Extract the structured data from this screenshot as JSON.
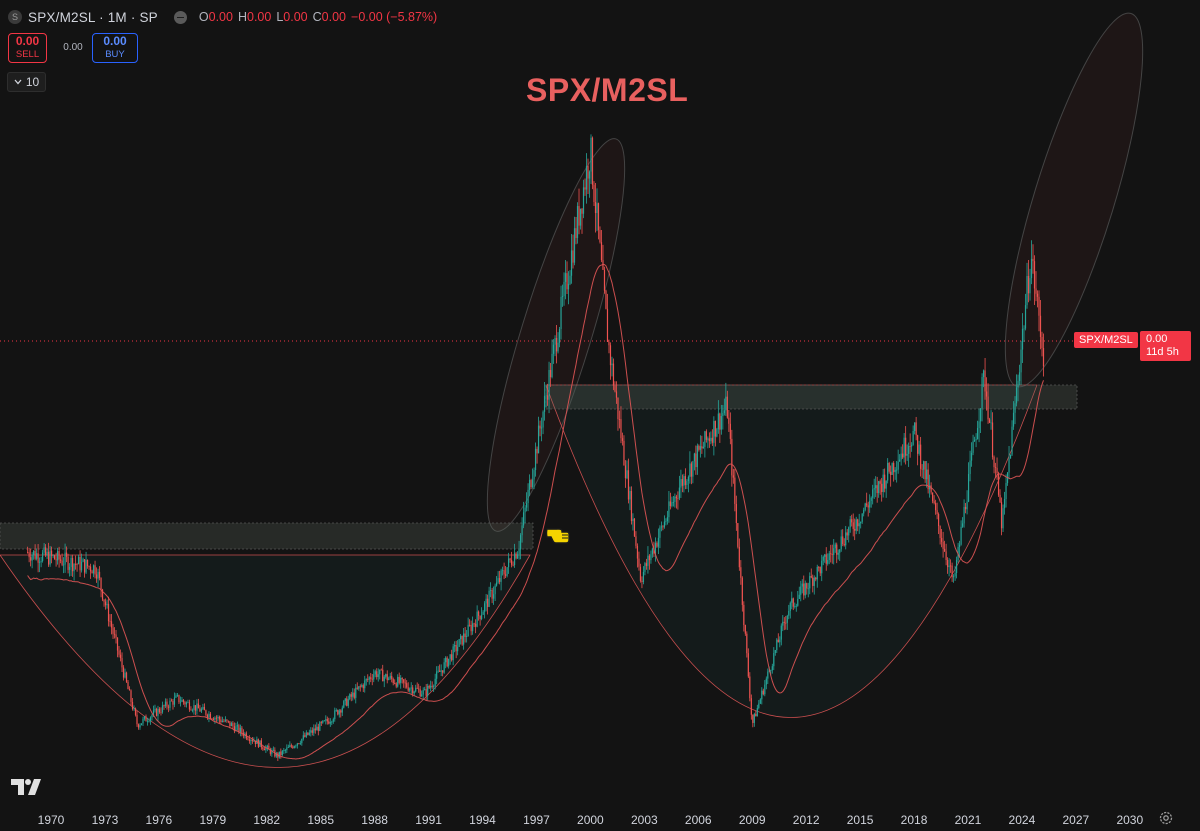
{
  "header": {
    "symbol_logo": "S",
    "symbol_title": "SPX/M2SL · 1M · SP",
    "ohlc": [
      {
        "key": "O",
        "value": "0.00"
      },
      {
        "key": "H",
        "value": "0.00"
      },
      {
        "key": "L",
        "value": "0.00"
      },
      {
        "key": "C",
        "value": "0.00"
      }
    ],
    "change": "−0.00 (−5.87%)"
  },
  "trade": {
    "sell_price": "0.00",
    "sell_label": "SELL",
    "spread": "0.00",
    "buy_price": "0.00",
    "buy_label": "BUY"
  },
  "collapse": {
    "count": "10"
  },
  "chart_title": "SPX/M2SL",
  "price_scale": {
    "symbol_label": "SPX/M2SL",
    "last_price": "0.00",
    "countdown": "11d 5h"
  },
  "time_axis": {
    "ticks": [
      "1970",
      "1973",
      "1976",
      "1979",
      "1982",
      "1985",
      "1988",
      "1991",
      "1994",
      "1997",
      "2000",
      "2003",
      "2006",
      "2009",
      "2012",
      "2015",
      "2018",
      "2021",
      "2024",
      "2027",
      "2030"
    ]
  },
  "colors": {
    "background": "#131313",
    "up_candle": "#26a69a",
    "down_candle": "#ef5350",
    "moving_average": "#e05555",
    "title": "#e8605f",
    "price_tag": "#f23645"
  },
  "icons": [
    "symbol-logo-icon",
    "hide-icon",
    "chevron-down-icon",
    "tradingview-logo-icon",
    "pointing-hand-icon",
    "settings-icon"
  ],
  "chart_data": {
    "type": "candlestick",
    "series_name": "SPX/M2SL",
    "interval": "1M",
    "x_unit": "year",
    "moving_average": true,
    "key_points": [
      {
        "x": 1968.7,
        "y": 0.63
      },
      {
        "x": 1972.5,
        "y": 0.6
      },
      {
        "x": 1974.8,
        "y": 0.3
      },
      {
        "x": 1977.0,
        "y": 0.35
      },
      {
        "x": 1980.0,
        "y": 0.3
      },
      {
        "x": 1982.6,
        "y": 0.24
      },
      {
        "x": 1985.5,
        "y": 0.31
      },
      {
        "x": 1988.0,
        "y": 0.4
      },
      {
        "x": 1990.8,
        "y": 0.36
      },
      {
        "x": 1994.0,
        "y": 0.52
      },
      {
        "x": 1996.0,
        "y": 0.64
      },
      {
        "x": 1998.0,
        "y": 1.02
      },
      {
        "x": 2000.0,
        "y": 1.4
      },
      {
        "x": 2001.0,
        "y": 1.03
      },
      {
        "x": 2002.8,
        "y": 0.58
      },
      {
        "x": 2005.0,
        "y": 0.76
      },
      {
        "x": 2007.6,
        "y": 0.91
      },
      {
        "x": 2009.0,
        "y": 0.3
      },
      {
        "x": 2011.0,
        "y": 0.52
      },
      {
        "x": 2015.0,
        "y": 0.7
      },
      {
        "x": 2018.0,
        "y": 0.86
      },
      {
        "x": 2020.2,
        "y": 0.57
      },
      {
        "x": 2021.9,
        "y": 0.97
      },
      {
        "x": 2022.9,
        "y": 0.68
      },
      {
        "x": 2024.5,
        "y": 1.2
      },
      {
        "x": 2025.2,
        "y": 1.01
      }
    ],
    "grid": false
  }
}
